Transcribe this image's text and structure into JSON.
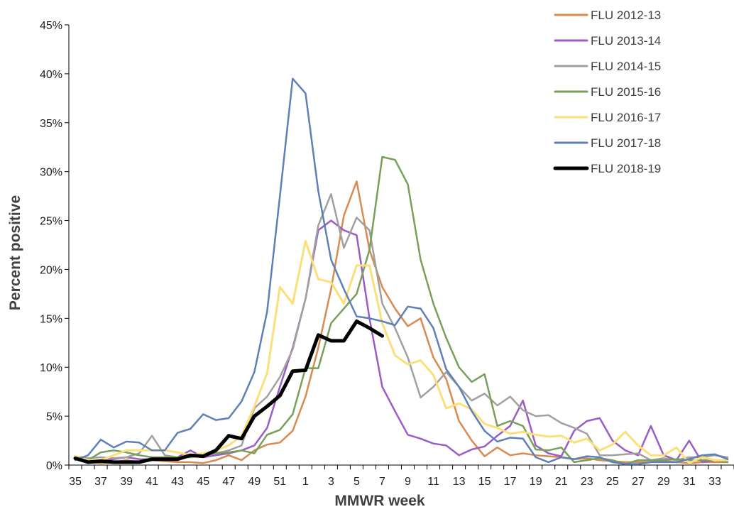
{
  "chart_data": {
    "type": "line",
    "xlabel": "MMWR week",
    "ylabel": "Percent positive",
    "ylim": [
      0,
      45
    ],
    "y_ticks": [
      "0%",
      "5%",
      "10%",
      "15%",
      "20%",
      "25%",
      "30%",
      "35%",
      "40%",
      "45%"
    ],
    "x_ticks": [
      "35",
      "37",
      "39",
      "41",
      "43",
      "45",
      "47",
      "49",
      "51",
      "1",
      "3",
      "5",
      "7",
      "9",
      "11",
      "13",
      "15",
      "17",
      "19",
      "21",
      "23",
      "25",
      "27",
      "29",
      "31",
      "33"
    ],
    "x_weeks": [
      35,
      36,
      37,
      38,
      39,
      40,
      41,
      42,
      43,
      44,
      45,
      46,
      47,
      48,
      49,
      50,
      51,
      52,
      1,
      2,
      3,
      4,
      5,
      6,
      7,
      8,
      9,
      10,
      11,
      12,
      13,
      14,
      15,
      16,
      17,
      18,
      19,
      20,
      21,
      22,
      23,
      24,
      25,
      26,
      27,
      28,
      29,
      30,
      31,
      32,
      33,
      34
    ],
    "grid": false,
    "legend_position": "top-right",
    "series": [
      {
        "name": "FLU 2012-13",
        "color": "#d98a4e",
        "width": 2.5,
        "values": [
          0.8,
          0.3,
          0.2,
          0.3,
          0.5,
          0.3,
          0.5,
          0.4,
          0.3,
          0.3,
          0.2,
          0.5,
          1.0,
          0.5,
          1.5,
          2.1,
          2.3,
          3.5,
          7.0,
          12.0,
          18.0,
          25.5,
          29.0,
          22.0,
          18.2,
          16.0,
          14.2,
          15.0,
          11.0,
          8.8,
          4.5,
          2.5,
          0.9,
          1.8,
          1.0,
          1.2,
          1.0,
          0.9,
          0.8,
          0.6,
          0.7,
          0.5,
          0.4,
          0.3,
          0.3,
          0.3,
          0.4,
          0.3,
          0.2,
          0.3,
          0.3,
          0.3
        ]
      },
      {
        "name": "FLU 2013-14",
        "color": "#9b5cc4",
        "width": 2.5,
        "values": [
          0.9,
          0.5,
          0.4,
          0.6,
          0.8,
          0.6,
          0.6,
          0.5,
          0.8,
          1.5,
          0.8,
          1.0,
          1.2,
          1.5,
          2.0,
          3.8,
          8.0,
          12.0,
          17.0,
          24.0,
          25.0,
          24.0,
          23.5,
          15.0,
          8.0,
          5.5,
          3.1,
          2.7,
          2.2,
          2.0,
          1.0,
          1.6,
          1.9,
          3.0,
          4.0,
          6.6,
          2.0,
          1.2,
          0.9,
          3.5,
          4.5,
          4.8,
          2.5,
          1.5,
          1.0,
          4.0,
          1.0,
          0.5,
          2.5,
          0.3,
          0.5,
          0.5
        ]
      },
      {
        "name": "FLU 2014-15",
        "color": "#a0a0a0",
        "width": 2.5,
        "values": [
          0.9,
          0.7,
          0.8,
          0.7,
          0.8,
          1.2,
          3.0,
          1.0,
          0.8,
          0.8,
          1.0,
          1.2,
          1.5,
          2.0,
          5.8,
          7.0,
          9.0,
          11.8,
          17.0,
          24.5,
          27.7,
          22.2,
          25.3,
          24.0,
          16.5,
          14.0,
          11.0,
          6.9,
          8.0,
          9.5,
          8.0,
          6.6,
          7.3,
          6.1,
          7.0,
          5.6,
          5.0,
          5.1,
          4.3,
          3.8,
          3.2,
          1.0,
          1.0,
          1.1,
          1.2,
          0.5,
          0.7,
          0.5,
          0.8,
          0.8,
          1.0,
          0.8
        ]
      },
      {
        "name": "FLU 2015-16",
        "color": "#77a05a",
        "width": 2.5,
        "values": [
          0.9,
          0.5,
          1.3,
          1.5,
          1.3,
          1.0,
          0.8,
          0.8,
          0.8,
          0.8,
          1.0,
          1.2,
          1.3,
          1.5,
          1.2,
          3.1,
          3.6,
          5.2,
          9.9,
          9.9,
          14.5,
          16.0,
          17.5,
          22.0,
          31.5,
          31.2,
          28.7,
          21.0,
          16.5,
          13.0,
          10.0,
          8.5,
          9.3,
          4.0,
          4.5,
          4.0,
          1.6,
          1.5,
          1.8,
          0.3,
          0.5,
          0.7,
          0.5,
          0.1,
          0.5,
          0.5,
          0.5,
          0.6,
          0.5,
          0.5,
          0.5,
          0.3
        ]
      },
      {
        "name": "FLU 2016-17",
        "color": "#fbe07a",
        "width": 3,
        "values": [
          0.9,
          0.5,
          0.5,
          1.0,
          1.5,
          1.5,
          1.5,
          1.5,
          1.3,
          1.0,
          1.2,
          1.5,
          2.0,
          3.0,
          6.0,
          9.4,
          18.2,
          16.5,
          22.9,
          19.0,
          18.7,
          16.5,
          20.4,
          20.4,
          14.5,
          11.2,
          10.3,
          10.7,
          9.2,
          5.8,
          6.3,
          5.7,
          4.2,
          3.8,
          3.2,
          3.4,
          3.1,
          2.9,
          3.0,
          2.3,
          2.7,
          1.5,
          2.1,
          3.4,
          2.0,
          1.0,
          1.0,
          1.8,
          0.2,
          0.8,
          0.5,
          0.5
        ]
      },
      {
        "name": "FLU 2017-18",
        "color": "#5e7fb8",
        "width": 2.5,
        "values": [
          0.5,
          1.0,
          2.6,
          1.8,
          2.4,
          2.3,
          1.5,
          1.5,
          3.3,
          3.7,
          5.2,
          4.6,
          4.8,
          6.5,
          9.5,
          15.7,
          27.5,
          39.5,
          38.0,
          28.0,
          21.0,
          18.0,
          15.2,
          15.0,
          14.7,
          14.3,
          16.2,
          16.0,
          14.0,
          9.8,
          8.0,
          5.5,
          3.5,
          2.4,
          2.8,
          2.7,
          0.8,
          0.3,
          0.8,
          0.6,
          0.9,
          0.8,
          0.3,
          0.1,
          0.1,
          0.3,
          0.3,
          0.3,
          0.6,
          1.0,
          1.1,
          0.6
        ]
      },
      {
        "name": "FLU 2018-19",
        "color": "#000000",
        "width": 5,
        "values": [
          0.7,
          0.3,
          0.4,
          0.3,
          0.3,
          0.3,
          0.6,
          0.6,
          0.6,
          1.0,
          0.9,
          1.5,
          3.0,
          2.7,
          5.0,
          6.0,
          7.1,
          9.6,
          9.7,
          13.3,
          12.7,
          12.7,
          14.7,
          14.0,
          13.2,
          null,
          null,
          null,
          null,
          null,
          null,
          null,
          null,
          null,
          null,
          null,
          null,
          null,
          null,
          null,
          null,
          null,
          null,
          null,
          null,
          null,
          null,
          null,
          null,
          null,
          null,
          null
        ]
      }
    ]
  }
}
